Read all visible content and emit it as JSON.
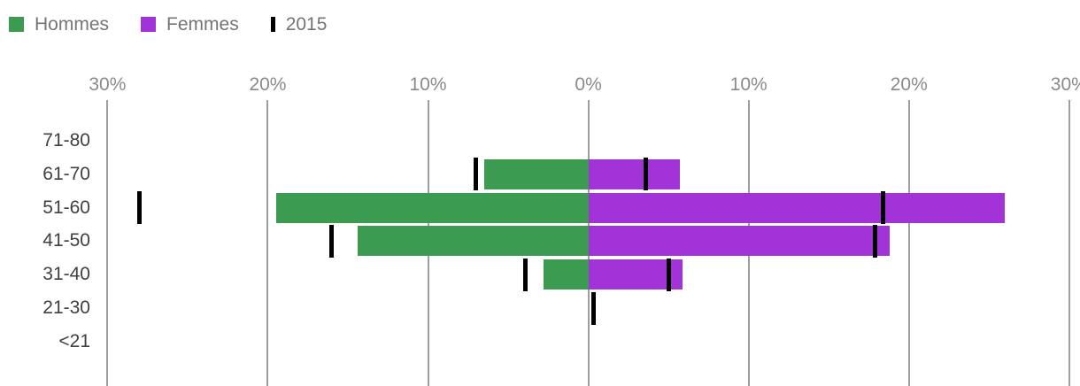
{
  "legend": {
    "items": [
      {
        "label": "Hommes",
        "marker": "square",
        "color": "#3a9b51"
      },
      {
        "label": "Femmes",
        "marker": "square",
        "color": "#a233d9"
      },
      {
        "label": "2015",
        "marker": "vbar",
        "color": "#000000"
      }
    ]
  },
  "colors": {
    "hommes": "#3a9b51",
    "femmes": "#a233d9",
    "marker_2015": "#000000",
    "gridline": "#9e9e9e",
    "axis_text": "#8a8a8a",
    "category_text": "#404040",
    "legend_text": "#757575"
  },
  "chart_data": {
    "type": "bar",
    "orientation": "horizontal-diverging",
    "title": "",
    "xlabel": "",
    "ylabel": "",
    "categories": [
      "71-80",
      "61-70",
      "51-60",
      "41-50",
      "31-40",
      "21-30",
      "<21"
    ],
    "series": [
      {
        "name": "Hommes",
        "style": "bar",
        "side": "left",
        "color": "#3a9b51",
        "values": [
          0,
          6.5,
          19.5,
          14.4,
          2.8,
          0,
          0
        ]
      },
      {
        "name": "Femmes",
        "style": "bar",
        "side": "right",
        "color": "#a233d9",
        "values": [
          0,
          5.7,
          26.0,
          18.8,
          5.9,
          0,
          0
        ]
      },
      {
        "name": "2015 (Hommes)",
        "style": "marker",
        "side": "left",
        "color": "#000000",
        "values": [
          null,
          7.0,
          28.0,
          16.0,
          3.9,
          null,
          null
        ]
      },
      {
        "name": "2015 (Femmes)",
        "style": "marker",
        "side": "right",
        "color": "#000000",
        "values": [
          null,
          3.6,
          18.4,
          17.9,
          5.0,
          0.3,
          null
        ]
      }
    ],
    "x_axis": {
      "position": "top",
      "unit": "%",
      "ticks": [
        -30,
        -20,
        -10,
        0,
        10,
        20,
        30
      ],
      "tick_labels": [
        "30%",
        "20%",
        "10%",
        "0%",
        "10%",
        "20%",
        "30%"
      ]
    },
    "xlim": [
      -30,
      30
    ],
    "grid": "vertical",
    "legend_position": "top-left"
  }
}
